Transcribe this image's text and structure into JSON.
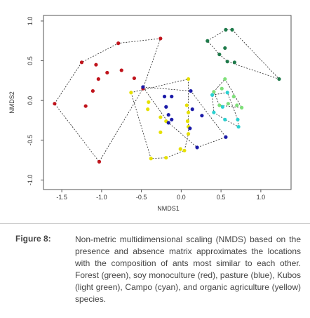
{
  "chart_data": {
    "type": "scatter",
    "xlabel": "NMDS1",
    "ylabel": "NMDS2",
    "xlim": [
      -1.73,
      1.38
    ],
    "ylim": [
      -1.12,
      1.07
    ],
    "xticks": [
      -1.5,
      {
        "value": -1.0,
        "label": "-1.0"
      },
      -0.5,
      {
        "value": 0.0,
        "label": "0.0"
      },
      0.5,
      {
        "value": 1.0,
        "label": "1.0"
      }
    ],
    "yticks": [
      {
        "value": -1.0,
        "label": "-1.0"
      },
      -0.5,
      {
        "value": 0.0,
        "label": "0.0"
      },
      0.5,
      {
        "value": 1.0,
        "label": "1.0"
      }
    ],
    "hulls": true,
    "series": [
      {
        "color": "#c0141c",
        "x": [
          -1.59,
          -1.25,
          -0.79,
          -0.26,
          -1.03,
          -1.07,
          -0.93,
          -1.04,
          -1.11,
          -1.2,
          -0.75,
          -0.59,
          -0.48
        ],
        "y": [
          -0.04,
          0.48,
          0.72,
          0.78,
          -0.77,
          0.45,
          0.35,
          0.27,
          0.12,
          -0.07,
          0.38,
          0.28,
          0.15
        ]
      },
      {
        "color": "#e6e000",
        "x": [
          -0.63,
          0.09,
          0.04,
          -0.38,
          -0.41,
          -0.42,
          -0.26,
          -0.19,
          -0.26,
          -0.19,
          -0.01,
          0.07,
          0.09,
          0.08,
          0.09,
          0.09
        ],
        "y": [
          0.1,
          0.27,
          -0.63,
          -0.73,
          -0.02,
          -0.11,
          -0.21,
          -0.26,
          -0.4,
          -0.72,
          -0.61,
          -0.06,
          -0.15,
          -0.26,
          -0.33,
          -0.42
        ]
      },
      {
        "color": "#1a1aa8",
        "x": [
          -0.48,
          -0.21,
          -0.12,
          -0.19,
          -0.16,
          -0.12,
          -0.16,
          0.14,
          0.26,
          0.11,
          0.2,
          0.56,
          0.12
        ],
        "y": [
          0.17,
          0.05,
          0.05,
          -0.08,
          -0.18,
          -0.24,
          -0.28,
          -0.11,
          -0.19,
          -0.35,
          -0.59,
          -0.46,
          0.12
        ]
      },
      {
        "color": "#1e7a4a",
        "x": [
          0.33,
          0.56,
          0.64,
          0.55,
          0.48,
          0.67,
          1.23,
          0.58
        ],
        "y": [
          0.75,
          0.89,
          0.89,
          0.66,
          0.58,
          0.48,
          0.27,
          0.49
        ]
      },
      {
        "color": "#7fe07a",
        "x": [
          0.55,
          0.76,
          0.48,
          0.41,
          0.51,
          0.59,
          0.66,
          0.7
        ],
        "y": [
          0.27,
          -0.09,
          -0.06,
          0.11,
          0.15,
          -0.04,
          0.05,
          -0.06
        ]
      },
      {
        "color": "#2ad0d0",
        "x": [
          0.39,
          0.58,
          0.72,
          0.41,
          0.55,
          0.71,
          0.52
        ],
        "y": [
          0.07,
          0.1,
          -0.33,
          -0.15,
          -0.24,
          -0.24,
          -0.08
        ]
      }
    ]
  },
  "caption": {
    "label": "Figure 8:",
    "text": "Non-metric multidimensional scaling (NMDS) based on the presence and absence matrix approximates the locations with the composition of ants most similar to each other. Forest (green), soy monoculture (red), pasture (blue), Kubos (light green), Campo (cyan), and organic agriculture (yellow) species."
  }
}
